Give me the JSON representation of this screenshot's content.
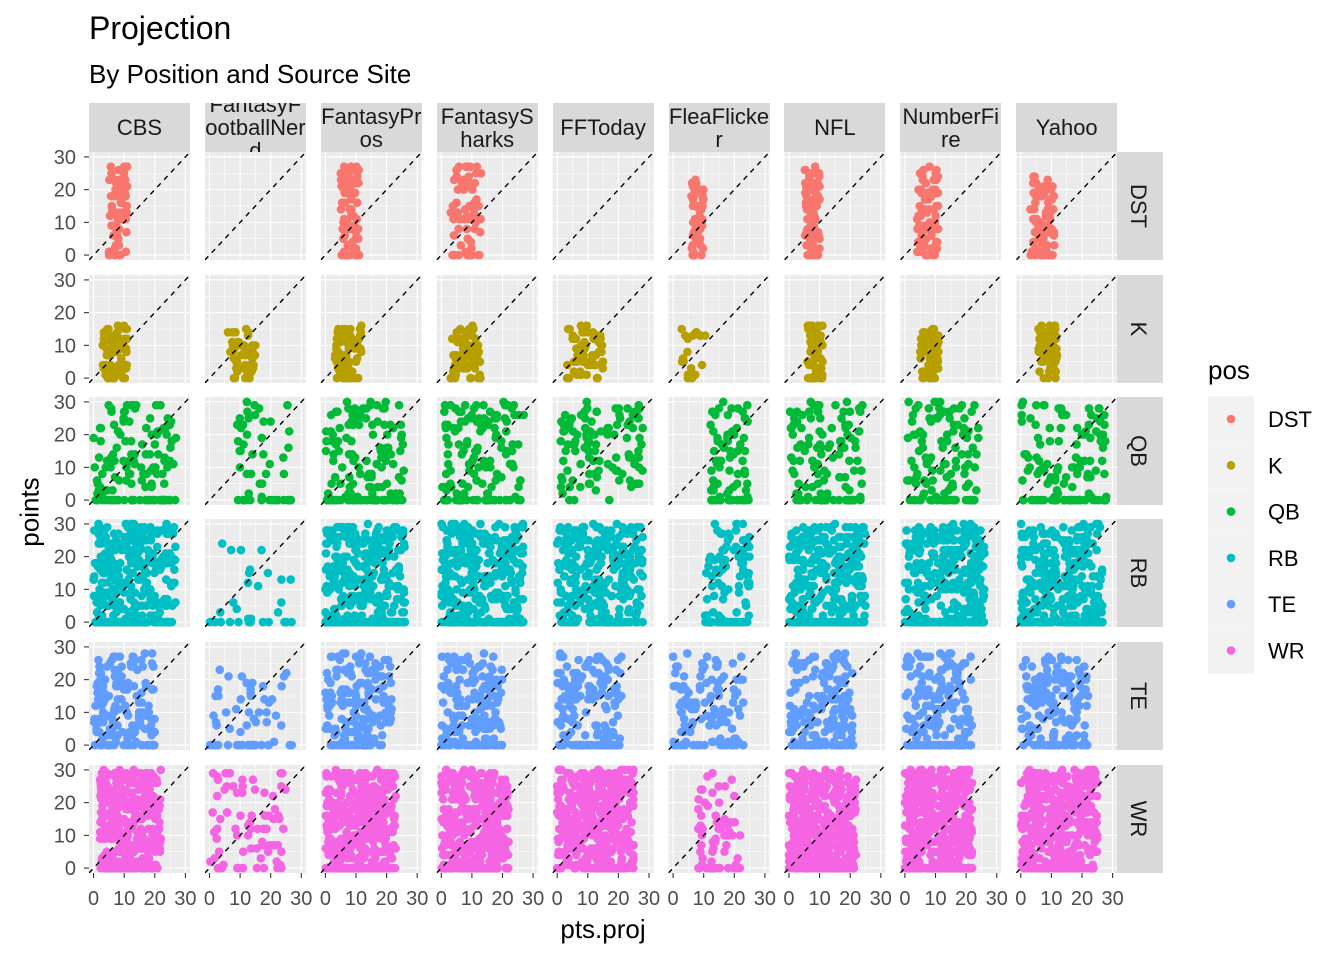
{
  "chart_data": {
    "type": "scatter",
    "title": "Projection",
    "subtitle": "By Position and Source Site",
    "xlabel": "pts.proj",
    "ylabel": "points",
    "xlim": [
      -1.5,
      31.5
    ],
    "ylim": [
      -1.5,
      31.5
    ],
    "x_ticks": [
      "0",
      "10",
      "20",
      "30"
    ],
    "x_tick_values": [
      0,
      10,
      20,
      30
    ],
    "y_ticks": [
      "0",
      "10",
      "20",
      "30"
    ],
    "y_tick_values": [
      0,
      10,
      20,
      30
    ],
    "grid": true,
    "reference_line": "y = x (dashed)",
    "facet_columns": [
      "CBS",
      "FantasyFootballNerd",
      "FantasyPros",
      "FantasySharks",
      "FFToday",
      "FleaFlicker",
      "NFL",
      "NumberFire",
      "Yahoo"
    ],
    "facet_rows": [
      "DST",
      "K",
      "QB",
      "RB",
      "TE",
      "WR"
    ],
    "legend": {
      "title": "pos",
      "placement": "right",
      "entries": [
        {
          "label": "DST",
          "color": "#F8766D"
        },
        {
          "label": "K",
          "color": "#B79F00"
        },
        {
          "label": "QB",
          "color": "#00BA38"
        },
        {
          "label": "RB",
          "color": "#00BFC4"
        },
        {
          "label": "TE",
          "color": "#619CFF"
        },
        {
          "label": "WR",
          "color": "#F564E3"
        }
      ]
    },
    "point_clouds_note": "approximate per-panel point distributions: n points, x range, y range, share of y=0",
    "panels": {
      "DST": [
        {
          "n": 70,
          "x": [
            5,
            11
          ],
          "y": [
            0,
            27
          ],
          "zero": 0.1
        },
        {
          "n": 0,
          "x": [
            0,
            0
          ],
          "y": [
            0,
            0
          ],
          "zero": 0
        },
        {
          "n": 70,
          "x": [
            5,
            11
          ],
          "y": [
            0,
            27
          ],
          "zero": 0.1
        },
        {
          "n": 70,
          "x": [
            3,
            13
          ],
          "y": [
            0,
            27
          ],
          "zero": 0.1
        },
        {
          "n": 0,
          "x": [
            0,
            0
          ],
          "y": [
            0,
            0
          ],
          "zero": 0
        },
        {
          "n": 60,
          "x": [
            6,
            10
          ],
          "y": [
            0,
            23
          ],
          "zero": 0.1
        },
        {
          "n": 70,
          "x": [
            5,
            10
          ],
          "y": [
            0,
            27
          ],
          "zero": 0.1
        },
        {
          "n": 70,
          "x": [
            4,
            11
          ],
          "y": [
            0,
            27
          ],
          "zero": 0.1
        },
        {
          "n": 70,
          "x": [
            3,
            11
          ],
          "y": [
            0,
            24
          ],
          "zero": 0.1
        }
      ],
      "K": [
        {
          "n": 70,
          "x": [
            3,
            11
          ],
          "y": [
            0,
            16
          ],
          "zero": 0.1
        },
        {
          "n": 45,
          "x": [
            6,
            15
          ],
          "y": [
            0,
            15
          ],
          "zero": 0.1
        },
        {
          "n": 70,
          "x": [
            3,
            12
          ],
          "y": [
            0,
            16
          ],
          "zero": 0.1
        },
        {
          "n": 70,
          "x": [
            3,
            13
          ],
          "y": [
            0,
            16
          ],
          "zero": 0.1
        },
        {
          "n": 60,
          "x": [
            3,
            15
          ],
          "y": [
            0,
            16
          ],
          "zero": 0.1
        },
        {
          "n": 20,
          "x": [
            2,
            11
          ],
          "y": [
            0,
            16
          ],
          "zero": 0.1
        },
        {
          "n": 60,
          "x": [
            6,
            11
          ],
          "y": [
            0,
            16
          ],
          "zero": 0.1
        },
        {
          "n": 60,
          "x": [
            5,
            11
          ],
          "y": [
            0,
            16
          ],
          "zero": 0.1
        },
        {
          "n": 60,
          "x": [
            5,
            12
          ],
          "y": [
            0,
            16
          ],
          "zero": 0.1
        }
      ],
      "QB": [
        {
          "n": 130,
          "x": [
            0,
            27
          ],
          "y": [
            0,
            30
          ],
          "zero": 0.25
        },
        {
          "n": 50,
          "x": [
            9,
            27
          ],
          "y": [
            0,
            30
          ],
          "zero": 0.3
        },
        {
          "n": 140,
          "x": [
            0,
            26
          ],
          "y": [
            0,
            30
          ],
          "zero": 0.25
        },
        {
          "n": 140,
          "x": [
            0,
            27
          ],
          "y": [
            0,
            30
          ],
          "zero": 0.25
        },
        {
          "n": 110,
          "x": [
            1,
            28
          ],
          "y": [
            2,
            30
          ],
          "zero": 0.03
        },
        {
          "n": 80,
          "x": [
            12,
            25
          ],
          "y": [
            0,
            30
          ],
          "zero": 0.25
        },
        {
          "n": 120,
          "x": [
            0,
            24
          ],
          "y": [
            0,
            30
          ],
          "zero": 0.25
        },
        {
          "n": 120,
          "x": [
            0,
            24
          ],
          "y": [
            0,
            30
          ],
          "zero": 0.25
        },
        {
          "n": 120,
          "x": [
            0,
            28
          ],
          "y": [
            0,
            30
          ],
          "zero": 0.25
        }
      ],
      "RB": [
        {
          "n": 320,
          "x": [
            0,
            27
          ],
          "y": [
            0,
            30
          ],
          "zero": 0.25
        },
        {
          "n": 30,
          "x": [
            0,
            27
          ],
          "y": [
            0,
            25
          ],
          "zero": 0.3
        },
        {
          "n": 340,
          "x": [
            0,
            26
          ],
          "y": [
            0,
            30
          ],
          "zero": 0.25
        },
        {
          "n": 340,
          "x": [
            0,
            27
          ],
          "y": [
            0,
            30
          ],
          "zero": 0.25
        },
        {
          "n": 300,
          "x": [
            0,
            28
          ],
          "y": [
            0,
            30
          ],
          "zero": 0.15
        },
        {
          "n": 110,
          "x": [
            10,
            25
          ],
          "y": [
            0,
            30
          ],
          "zero": 0.25
        },
        {
          "n": 330,
          "x": [
            0,
            25
          ],
          "y": [
            0,
            30
          ],
          "zero": 0.25
        },
        {
          "n": 330,
          "x": [
            0,
            26
          ],
          "y": [
            0,
            30
          ],
          "zero": 0.25
        },
        {
          "n": 330,
          "x": [
            0,
            27
          ],
          "y": [
            0,
            30
          ],
          "zero": 0.25
        }
      ],
      "TE": [
        {
          "n": 150,
          "x": [
            0,
            20
          ],
          "y": [
            0,
            28
          ],
          "zero": 0.2
        },
        {
          "n": 55,
          "x": [
            0,
            27
          ],
          "y": [
            0,
            24
          ],
          "zero": 0.3
        },
        {
          "n": 170,
          "x": [
            0,
            22
          ],
          "y": [
            0,
            28
          ],
          "zero": 0.2
        },
        {
          "n": 170,
          "x": [
            0,
            20
          ],
          "y": [
            0,
            28
          ],
          "zero": 0.2
        },
        {
          "n": 150,
          "x": [
            0,
            21
          ],
          "y": [
            0,
            28
          ],
          "zero": 0.15
        },
        {
          "n": 110,
          "x": [
            0,
            23
          ],
          "y": [
            0,
            28
          ],
          "zero": 0.2
        },
        {
          "n": 170,
          "x": [
            0,
            21
          ],
          "y": [
            0,
            28
          ],
          "zero": 0.2
        },
        {
          "n": 170,
          "x": [
            0,
            22
          ],
          "y": [
            0,
            28
          ],
          "zero": 0.2
        },
        {
          "n": 160,
          "x": [
            0,
            22
          ],
          "y": [
            0,
            27
          ],
          "zero": 0.2
        }
      ],
      "WR": [
        {
          "n": 380,
          "x": [
            2,
            22
          ],
          "y": [
            0,
            30
          ],
          "zero": 0.15
        },
        {
          "n": 75,
          "x": [
            0,
            25
          ],
          "y": [
            0,
            30
          ],
          "zero": 0.15
        },
        {
          "n": 420,
          "x": [
            0,
            23
          ],
          "y": [
            0,
            30
          ],
          "zero": 0.15
        },
        {
          "n": 400,
          "x": [
            0,
            22
          ],
          "y": [
            0,
            30
          ],
          "zero": 0.15
        },
        {
          "n": 420,
          "x": [
            0,
            25
          ],
          "y": [
            0,
            30
          ],
          "zero": 0.1
        },
        {
          "n": 70,
          "x": [
            8,
            22
          ],
          "y": [
            0,
            29
          ],
          "zero": 0.2
        },
        {
          "n": 420,
          "x": [
            0,
            22
          ],
          "y": [
            0,
            30
          ],
          "zero": 0.15
        },
        {
          "n": 420,
          "x": [
            0,
            22
          ],
          "y": [
            0,
            30
          ],
          "zero": 0.15
        },
        {
          "n": 410,
          "x": [
            0,
            25
          ],
          "y": [
            0,
            30
          ],
          "zero": 0.15
        }
      ]
    }
  }
}
